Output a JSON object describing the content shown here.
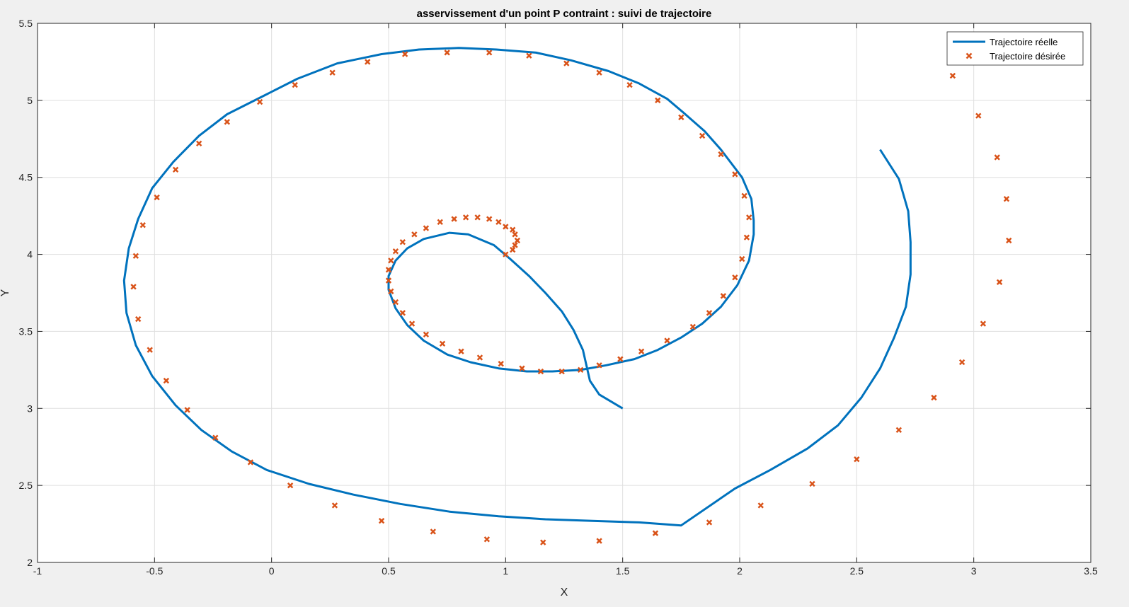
{
  "chart_data": {
    "type": "line",
    "title": "asservissement d'un point P contraint : suivi de trajectoire",
    "xlabel": "X",
    "ylabel": "Y",
    "xlim": [
      -1,
      3.5
    ],
    "ylim": [
      2,
      5.5
    ],
    "xticks": [
      -1,
      -0.5,
      0,
      0.5,
      1,
      1.5,
      2,
      2.5,
      3,
      3.5
    ],
    "yticks": [
      2,
      2.5,
      3,
      3.5,
      4,
      4.5,
      5,
      5.5
    ],
    "xtick_labels": [
      "-1",
      "-0.5",
      "0",
      "0.5",
      "1",
      "1.5",
      "2",
      "2.5",
      "3",
      "3.5"
    ],
    "ytick_labels": [
      "2",
      "2.5",
      "3",
      "3.5",
      "4",
      "4.5",
      "5",
      "5.5"
    ],
    "grid": true,
    "legend_position": "top-right",
    "series": [
      {
        "name": "Trajectoire réelle",
        "style": "line",
        "color": "#0072BD",
        "points": [
          [
            1.5,
            3.0
          ],
          [
            1.4,
            3.09
          ],
          [
            1.36,
            3.18
          ],
          [
            1.33,
            3.38
          ],
          [
            1.29,
            3.51
          ],
          [
            1.24,
            3.63
          ],
          [
            1.17,
            3.75
          ],
          [
            1.1,
            3.86
          ],
          [
            1.02,
            3.97
          ],
          [
            0.95,
            4.06
          ],
          [
            0.84,
            4.13
          ],
          [
            0.76,
            4.14
          ],
          [
            0.65,
            4.1
          ],
          [
            0.58,
            4.04
          ],
          [
            0.53,
            3.96
          ],
          [
            0.5,
            3.86
          ],
          [
            0.5,
            3.77
          ],
          [
            0.53,
            3.65
          ],
          [
            0.58,
            3.54
          ],
          [
            0.65,
            3.44
          ],
          [
            0.75,
            3.35
          ],
          [
            0.85,
            3.3
          ],
          [
            0.97,
            3.26
          ],
          [
            1.09,
            3.24
          ],
          [
            1.2,
            3.24
          ],
          [
            1.32,
            3.25
          ],
          [
            1.43,
            3.28
          ],
          [
            1.55,
            3.32
          ],
          [
            1.65,
            3.38
          ],
          [
            1.75,
            3.46
          ],
          [
            1.84,
            3.55
          ],
          [
            1.92,
            3.66
          ],
          [
            1.99,
            3.8
          ],
          [
            2.04,
            3.96
          ],
          [
            2.06,
            4.13
          ],
          [
            2.06,
            4.22
          ],
          [
            2.05,
            4.36
          ],
          [
            2.01,
            4.5
          ],
          [
            1.92,
            4.68
          ],
          [
            1.85,
            4.8
          ],
          [
            1.76,
            4.92
          ],
          [
            1.69,
            5.01
          ],
          [
            1.57,
            5.11
          ],
          [
            1.44,
            5.19
          ],
          [
            1.28,
            5.26
          ],
          [
            1.13,
            5.31
          ],
          [
            0.96,
            5.33
          ],
          [
            0.8,
            5.34
          ],
          [
            0.63,
            5.33
          ],
          [
            0.47,
            5.3
          ],
          [
            0.28,
            5.24
          ],
          [
            0.11,
            5.14
          ],
          [
            -0.02,
            5.04
          ],
          [
            -0.19,
            4.91
          ],
          [
            -0.31,
            4.77
          ],
          [
            -0.42,
            4.6
          ],
          [
            -0.51,
            4.43
          ],
          [
            -0.57,
            4.23
          ],
          [
            -0.61,
            4.04
          ],
          [
            -0.63,
            3.83
          ],
          [
            -0.62,
            3.62
          ],
          [
            -0.58,
            3.41
          ],
          [
            -0.51,
            3.21
          ],
          [
            -0.41,
            3.02
          ],
          [
            -0.3,
            2.86
          ],
          [
            -0.17,
            2.72
          ],
          [
            -0.02,
            2.6
          ],
          [
            0.16,
            2.51
          ],
          [
            0.35,
            2.44
          ],
          [
            0.55,
            2.38
          ],
          [
            0.76,
            2.33
          ],
          [
            0.97,
            2.3
          ],
          [
            1.17,
            2.28
          ],
          [
            1.37,
            2.27
          ],
          [
            1.57,
            2.26
          ],
          [
            1.75,
            2.24
          ],
          [
            1.98,
            2.48
          ],
          [
            2.13,
            2.6
          ],
          [
            2.29,
            2.74
          ],
          [
            2.42,
            2.89
          ],
          [
            2.52,
            3.07
          ],
          [
            2.6,
            3.26
          ],
          [
            2.66,
            3.46
          ],
          [
            2.71,
            3.66
          ],
          [
            2.73,
            3.87
          ],
          [
            2.73,
            4.08
          ],
          [
            2.72,
            4.28
          ],
          [
            2.68,
            4.49
          ],
          [
            2.6,
            4.68
          ]
        ]
      },
      {
        "name": "Trajectoire désirée",
        "style": "marker",
        "color": "#D95319",
        "points": [
          [
            1.0,
            4.0
          ],
          [
            1.03,
            4.03
          ],
          [
            1.04,
            4.06
          ],
          [
            1.05,
            4.09
          ],
          [
            1.04,
            4.13
          ],
          [
            1.03,
            4.16
          ],
          [
            1.0,
            4.18
          ],
          [
            0.97,
            4.21
          ],
          [
            0.93,
            4.23
          ],
          [
            0.88,
            4.24
          ],
          [
            0.83,
            4.24
          ],
          [
            0.78,
            4.23
          ],
          [
            0.72,
            4.21
          ],
          [
            0.66,
            4.17
          ],
          [
            0.61,
            4.13
          ],
          [
            0.56,
            4.08
          ],
          [
            0.53,
            4.02
          ],
          [
            0.51,
            3.96
          ],
          [
            0.5,
            3.9
          ],
          [
            0.5,
            3.83
          ],
          [
            0.51,
            3.76
          ],
          [
            0.53,
            3.69
          ],
          [
            0.56,
            3.62
          ],
          [
            0.6,
            3.55
          ],
          [
            0.66,
            3.48
          ],
          [
            0.73,
            3.42
          ],
          [
            0.81,
            3.37
          ],
          [
            0.89,
            3.33
          ],
          [
            0.98,
            3.29
          ],
          [
            1.07,
            3.26
          ],
          [
            1.15,
            3.24
          ],
          [
            1.24,
            3.24
          ],
          [
            1.32,
            3.25
          ],
          [
            1.4,
            3.28
          ],
          [
            1.49,
            3.32
          ],
          [
            1.58,
            3.37
          ],
          [
            1.69,
            3.44
          ],
          [
            1.8,
            3.53
          ],
          [
            1.87,
            3.62
          ],
          [
            1.93,
            3.73
          ],
          [
            1.98,
            3.85
          ],
          [
            2.01,
            3.97
          ],
          [
            2.03,
            4.11
          ],
          [
            2.04,
            4.24
          ],
          [
            2.02,
            4.38
          ],
          [
            1.98,
            4.52
          ],
          [
            1.92,
            4.65
          ],
          [
            1.84,
            4.77
          ],
          [
            1.75,
            4.89
          ],
          [
            1.65,
            5.0
          ],
          [
            1.53,
            5.1
          ],
          [
            1.4,
            5.18
          ],
          [
            1.26,
            5.24
          ],
          [
            1.1,
            5.29
          ],
          [
            0.93,
            5.31
          ],
          [
            0.75,
            5.31
          ],
          [
            0.57,
            5.3
          ],
          [
            0.41,
            5.25
          ],
          [
            0.26,
            5.18
          ],
          [
            0.1,
            5.1
          ],
          [
            -0.05,
            4.99
          ],
          [
            -0.19,
            4.86
          ],
          [
            -0.31,
            4.72
          ],
          [
            -0.41,
            4.55
          ],
          [
            -0.49,
            4.37
          ],
          [
            -0.55,
            4.19
          ],
          [
            -0.58,
            3.99
          ],
          [
            -0.59,
            3.79
          ],
          [
            -0.57,
            3.58
          ],
          [
            -0.52,
            3.38
          ],
          [
            -0.45,
            3.18
          ],
          [
            -0.36,
            2.99
          ],
          [
            -0.24,
            2.81
          ],
          [
            -0.09,
            2.65
          ],
          [
            0.08,
            2.5
          ],
          [
            0.27,
            2.37
          ],
          [
            0.47,
            2.27
          ],
          [
            0.69,
            2.2
          ],
          [
            0.92,
            2.15
          ],
          [
            1.16,
            2.13
          ],
          [
            1.4,
            2.14
          ],
          [
            1.64,
            2.19
          ],
          [
            1.87,
            2.26
          ],
          [
            2.09,
            2.37
          ],
          [
            2.31,
            2.51
          ],
          [
            2.5,
            2.67
          ],
          [
            2.68,
            2.86
          ],
          [
            2.83,
            3.07
          ],
          [
            2.95,
            3.3
          ],
          [
            3.04,
            3.55
          ],
          [
            3.11,
            3.82
          ],
          [
            3.15,
            4.09
          ],
          [
            3.14,
            4.36
          ],
          [
            3.1,
            4.63
          ],
          [
            3.02,
            4.9
          ],
          [
            2.91,
            5.16
          ]
        ]
      }
    ]
  }
}
